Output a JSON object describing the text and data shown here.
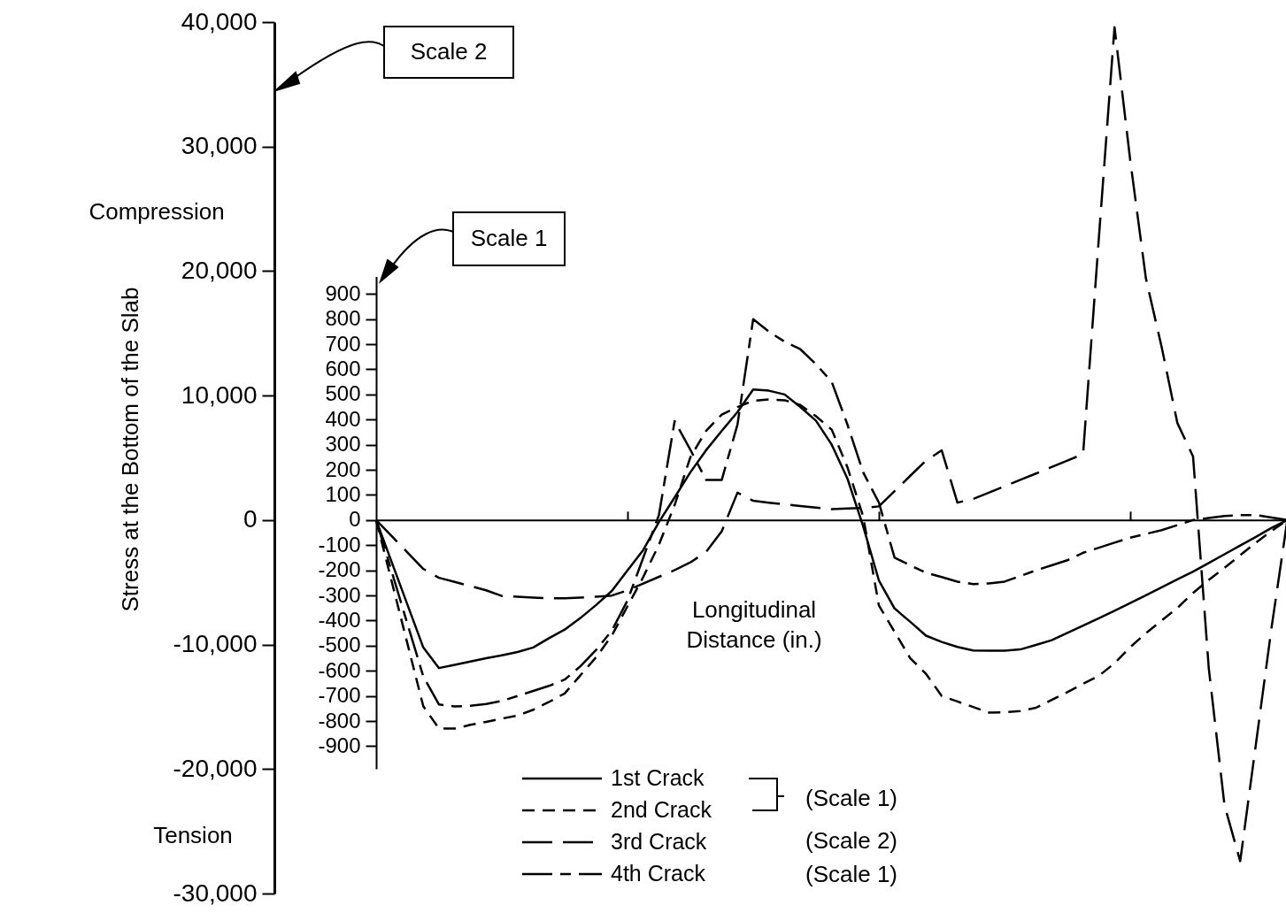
{
  "chart_data": {
    "type": "line",
    "xlabel": "Longitudinal Distance (in.)",
    "ylabel": "Stress at the Bottom of the Slab",
    "categories": [
      null,
      null,
      null,
      null,
      null,
      null,
      null,
      null,
      null,
      null,
      null,
      null,
      null,
      null,
      null,
      null,
      null,
      null,
      null,
      null,
      null,
      null,
      null,
      null,
      null,
      null,
      null,
      null,
      null,
      null,
      null,
      null,
      null,
      null,
      null,
      null,
      null,
      null,
      null,
      null,
      null,
      null,
      null,
      null,
      null,
      null,
      null,
      null,
      null,
      null,
      null,
      null,
      null,
      null,
      null,
      null,
      null,
      null,
      null
    ],
    "ylim": [
      -30000,
      40000
    ],
    "yticks": [
      {
        "value": -30000,
        "label": "-30,000"
      },
      {
        "value": -20000,
        "label": "-20,000"
      },
      {
        "value": -10000,
        "label": "-10,000"
      },
      0,
      {
        "value": 10000,
        "label": "10,000"
      },
      {
        "value": 20000,
        "label": "20,000"
      },
      {
        "value": 30000,
        "label": "30,000"
      },
      {
        "value": 40000,
        "label": "40,000"
      }
    ],
    "y2lim": [
      -990,
      970
    ],
    "y2ticks": [
      -900,
      -800,
      -700,
      -600,
      -500,
      -400,
      -300,
      -200,
      -100,
      0,
      100,
      200,
      300,
      400,
      500,
      600,
      700,
      800,
      900
    ],
    "tick_labels": "y",
    "legend": "bottom left",
    "series": [
      {
        "name": "1st Crack",
        "color": "#000000",
        "axis": "y2",
        "line_style": "solid",
        "values": [
          0,
          -169,
          -338,
          -507,
          -589,
          -576,
          -563,
          -550,
          -538,
          -525,
          -507,
          -470,
          -436,
          -390,
          -338,
          -282,
          -200,
          -119,
          -8,
          90,
          190,
          278,
          355,
          430,
          520,
          515,
          500,
          450,
          395,
          300,
          165,
          -25,
          -240,
          -352,
          -405,
          -460,
          -485,
          -505,
          -519,
          -520,
          -520,
          -515,
          -497,
          -478,
          -449,
          -420,
          -391,
          -361,
          -330,
          -299,
          -268,
          -236,
          -205,
          -171,
          -136,
          -101,
          -67,
          -31,
          0
        ]
      },
      {
        "name": "2nd Crack",
        "color": "#000000",
        "axis": "y2",
        "line_style": "dashed",
        "values": [
          0,
          -247,
          -494,
          -741,
          -830,
          -830,
          -815,
          -803,
          -790,
          -778,
          -755,
          -724,
          -690,
          -618,
          -546,
          -460,
          -343,
          -227,
          -98,
          60,
          250,
          355,
          420,
          450,
          475,
          480,
          477,
          458,
          413,
          360,
          210,
          15,
          -340,
          -445,
          -550,
          -612,
          -700,
          -722,
          -744,
          -766,
          -765,
          -760,
          -747,
          -716,
          -685,
          -651,
          -620,
          -570,
          -506,
          -450,
          -400,
          -350,
          -290,
          -238,
          -190,
          -140,
          -90,
          -43,
          0
        ]
      },
      {
        "name": "3rd Crack",
        "color": "#000000",
        "axis": "y",
        "line_style": "dashed",
        "values": [
          0,
          -1300,
          -2610,
          -3920,
          -4640,
          -4970,
          -5300,
          -5640,
          -6100,
          -6160,
          -6220,
          -6280,
          -6290,
          -6220,
          -6150,
          -6060,
          -5650,
          -5100,
          -4560,
          -4020,
          -3400,
          -2560,
          -900,
          2200,
          1550,
          1400,
          1260,
          1130,
          1000,
          870,
          930,
          980,
          1100,
          2330,
          3560,
          4780,
          5600,
          1400,
          1700,
          2200,
          2720,
          3230,
          3740,
          4260,
          4780,
          5300,
          22600,
          39600,
          28900,
          19400,
          13900,
          7800,
          5100,
          -11900,
          -22900,
          -27400,
          -18000,
          -8600,
          0
        ]
      },
      {
        "name": "4th Crack",
        "color": "#000000",
        "axis": "y2",
        "line_style": "dashed",
        "values": [
          0,
          -207,
          -415,
          -622,
          -734,
          -742,
          -739,
          -732,
          -720,
          -700,
          -680,
          -660,
          -635,
          -582,
          -517,
          -440,
          -320,
          -150,
          20,
          394,
          280,
          160,
          160,
          380,
          800,
          750,
          710,
          680,
          620,
          550,
          380,
          190,
          70,
          -150,
          -180,
          -210,
          -227,
          -245,
          -255,
          -252,
          -245,
          -223,
          -200,
          -180,
          -160,
          -130,
          -110,
          -90,
          -70,
          -55,
          -40,
          -20,
          0,
          8,
          16,
          20,
          20,
          10,
          0
        ]
      }
    ],
    "annotations": [
      "Scale 2",
      "Scale 1",
      "Compression",
      "Tension",
      "(Scale 1)",
      "(Scale 2)",
      "(Scale 1)"
    ]
  }
}
